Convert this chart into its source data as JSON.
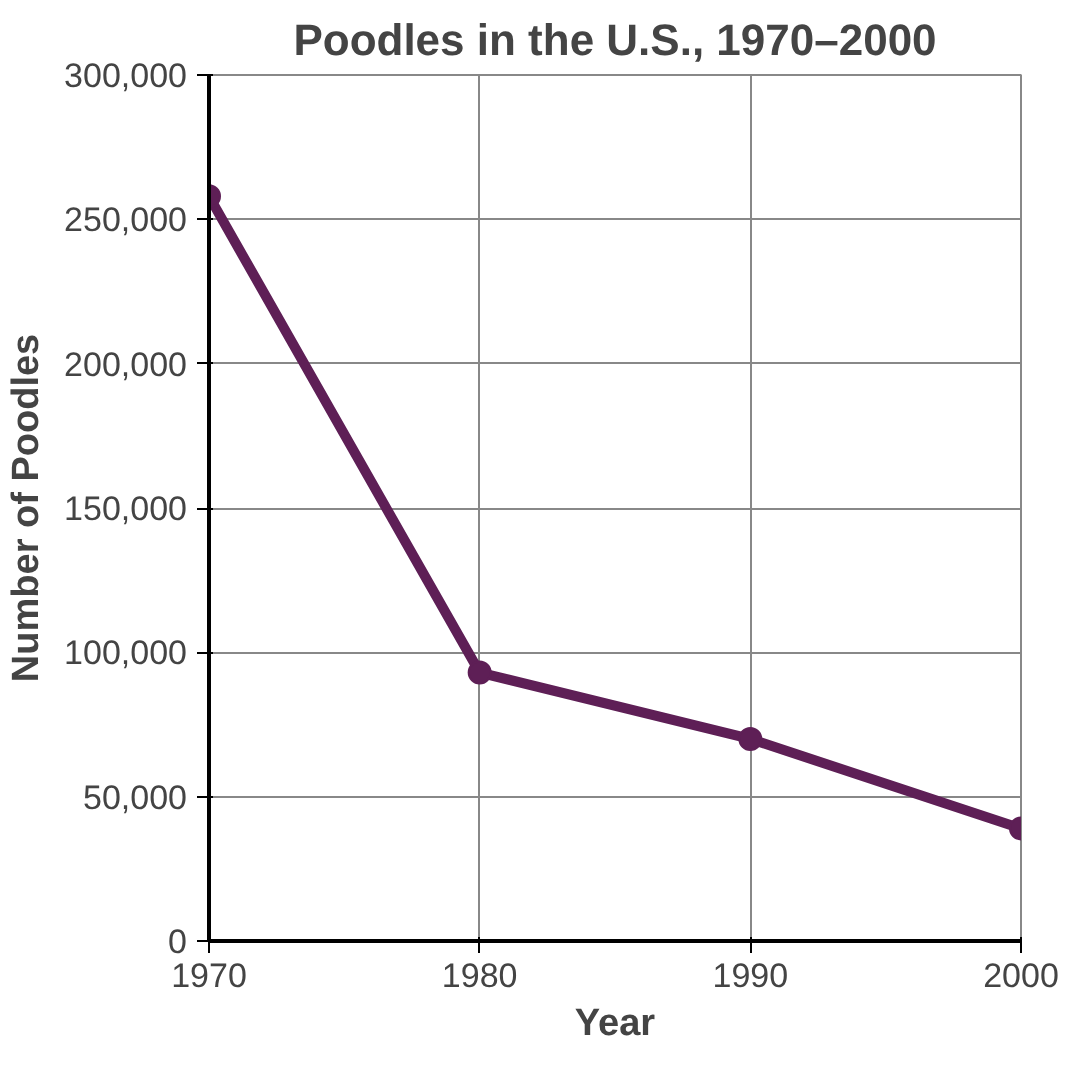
{
  "chart_data": {
    "type": "line",
    "title": "Poodles in the U.S., 1970–2000",
    "xlabel": "Year",
    "ylabel": "Number of Poodles",
    "x": [
      1970,
      1980,
      1990,
      2000
    ],
    "series": [
      {
        "color": "#5e1f56",
        "values": [
          258000,
          93000,
          70000,
          39000
        ]
      }
    ],
    "xlim": [
      1970,
      2000
    ],
    "xticks": [
      1970,
      1980,
      1990,
      2000
    ],
    "ylim": [
      0,
      300000
    ],
    "yticks": [
      {
        "value": 0,
        "label": "0"
      },
      {
        "value": 50000,
        "label": "50,000"
      },
      {
        "value": 100000,
        "label": "100,000"
      },
      {
        "value": 150000,
        "label": "150,000"
      },
      {
        "value": 200000,
        "label": "200,000"
      },
      {
        "value": 250000,
        "label": "250,000"
      },
      {
        "value": 300000,
        "label": "300,000"
      }
    ],
    "grid": true,
    "marker": "circle",
    "line_style": "solid"
  }
}
